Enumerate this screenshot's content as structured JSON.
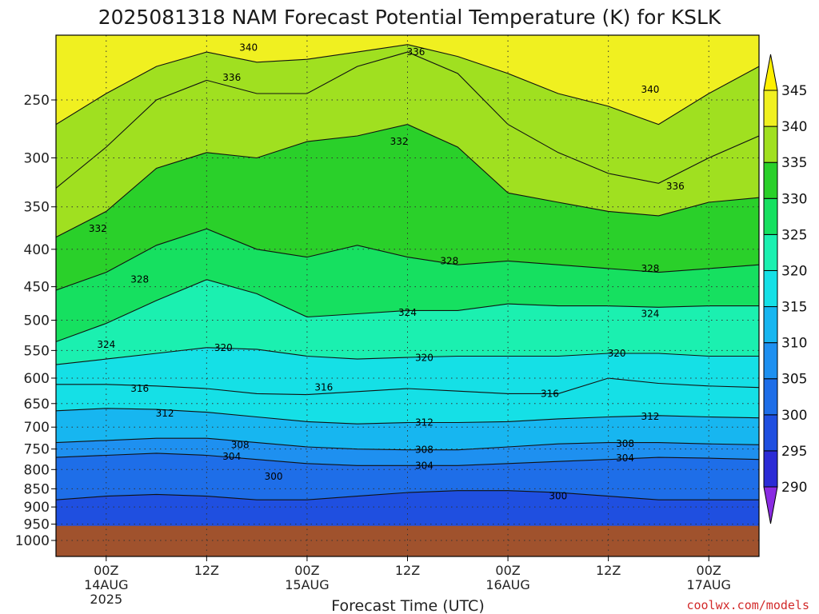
{
  "chart_data": {
    "type": "heatmap",
    "title": "2025081318 NAM Forecast Potential Temperature (K) for KSLK",
    "xlabel": "Forecast Time (UTC)",
    "ylabel": "",
    "y_scale": "log-pressure",
    "y_ticks": [
      "250",
      "300",
      "350",
      "400",
      "450",
      "500",
      "550",
      "600",
      "650",
      "700",
      "750",
      "800",
      "850",
      "900",
      "950",
      "1000"
    ],
    "y_range_hpa": [
      200,
      1000
    ],
    "x_ticks": [
      {
        "time": "00Z",
        "date": "14AUG",
        "year": "2025",
        "hour": 6
      },
      {
        "time": "12Z",
        "date": "",
        "year": "",
        "hour": 18
      },
      {
        "time": "00Z",
        "date": "15AUG",
        "year": "",
        "hour": 30
      },
      {
        "time": "12Z",
        "date": "",
        "year": "",
        "hour": 42
      },
      {
        "time": "00Z",
        "date": "16AUG",
        "year": "",
        "hour": 54
      },
      {
        "time": "12Z",
        "date": "",
        "year": "",
        "hour": 66
      },
      {
        "time": "00Z",
        "date": "17AUG",
        "year": "",
        "hour": 78
      }
    ],
    "x_range_hours": [
      0,
      84
    ],
    "colorbar": {
      "levels": [
        "290",
        "295",
        "300",
        "305",
        "310",
        "315",
        "320",
        "325",
        "330",
        "335",
        "340",
        "345"
      ],
      "colors": [
        "#8a2be2",
        "#2b2bd6",
        "#1f4fe0",
        "#1e6ee8",
        "#1e90f0",
        "#17b6f0",
        "#15e0e6",
        "#1bf0b0",
        "#16e060",
        "#2ad02a",
        "#a0e020",
        "#f0f020",
        "#fff000"
      ]
    },
    "ground_color": "#a0522d",
    "isotherms": [
      {
        "label": "300",
        "p": [
          880,
          870,
          865,
          870,
          880,
          880,
          870,
          860,
          855,
          855,
          860,
          870,
          880,
          880,
          880
        ]
      },
      {
        "label": "304",
        "p": [
          770,
          765,
          760,
          765,
          775,
          785,
          790,
          790,
          790,
          785,
          780,
          775,
          770,
          772,
          775
        ]
      },
      {
        "label": "308",
        "p": [
          735,
          730,
          725,
          725,
          735,
          745,
          750,
          752,
          752,
          745,
          738,
          735,
          735,
          738,
          740
        ]
      },
      {
        "label": "312",
        "p": [
          665,
          660,
          662,
          668,
          678,
          688,
          693,
          690,
          690,
          688,
          682,
          678,
          675,
          678,
          680
        ]
      },
      {
        "label": "316",
        "p": [
          612,
          612,
          615,
          620,
          630,
          632,
          626,
          620,
          625,
          630,
          630,
          600,
          610,
          615,
          618
        ]
      },
      {
        "label": "320",
        "p": [
          575,
          565,
          555,
          545,
          548,
          560,
          565,
          562,
          560,
          560,
          560,
          555,
          555,
          560,
          560
        ]
      },
      {
        "label": "324",
        "p": [
          535,
          505,
          470,
          440,
          460,
          495,
          490,
          485,
          485,
          475,
          478,
          478,
          480,
          478,
          478
        ]
      },
      {
        "label": "328",
        "p": [
          455,
          430,
          395,
          375,
          400,
          410,
          395,
          410,
          420,
          415,
          420,
          425,
          430,
          425,
          420
        ]
      },
      {
        "label": "332",
        "p": [
          385,
          355,
          310,
          295,
          300,
          285,
          280,
          270,
          290,
          335,
          345,
          355,
          360,
          345,
          340
        ]
      },
      {
        "label": "336",
        "p": [
          330,
          290,
          250,
          235,
          245,
          245,
          225,
          215,
          230,
          270,
          295,
          315,
          325,
          300,
          280
        ]
      },
      {
        "label": "340",
        "p": [
          270,
          245,
          225,
          215,
          222,
          220,
          215,
          210,
          218,
          230,
          245,
          255,
          270,
          245,
          225
        ]
      }
    ],
    "contour_labels": [
      {
        "text": "340",
        "hour": 23,
        "p": 212
      },
      {
        "text": "336",
        "hour": 21,
        "p": 233
      },
      {
        "text": "336",
        "hour": 43,
        "p": 215
      },
      {
        "text": "340",
        "hour": 71,
        "p": 242
      },
      {
        "text": "332",
        "hour": 41,
        "p": 285
      },
      {
        "text": "336",
        "hour": 74,
        "p": 328
      },
      {
        "text": "332",
        "hour": 5,
        "p": 375
      },
      {
        "text": "328",
        "hour": 47,
        "p": 415
      },
      {
        "text": "328",
        "hour": 71,
        "p": 425
      },
      {
        "text": "328",
        "hour": 10,
        "p": 440
      },
      {
        "text": "324",
        "hour": 42,
        "p": 488
      },
      {
        "text": "324",
        "hour": 71,
        "p": 490
      },
      {
        "text": "324",
        "hour": 6,
        "p": 540
      },
      {
        "text": "320",
        "hour": 20,
        "p": 545
      },
      {
        "text": "320",
        "hour": 44,
        "p": 563
      },
      {
        "text": "320",
        "hour": 67,
        "p": 555
      },
      {
        "text": "316",
        "hour": 10,
        "p": 620
      },
      {
        "text": "316",
        "hour": 32,
        "p": 618
      },
      {
        "text": "316",
        "hour": 59,
        "p": 630
      },
      {
        "text": "312",
        "hour": 13,
        "p": 670
      },
      {
        "text": "312",
        "hour": 44,
        "p": 690
      },
      {
        "text": "312",
        "hour": 71,
        "p": 677
      },
      {
        "text": "308",
        "hour": 22,
        "p": 740
      },
      {
        "text": "308",
        "hour": 44,
        "p": 752
      },
      {
        "text": "308",
        "hour": 68,
        "p": 738
      },
      {
        "text": "304",
        "hour": 21,
        "p": 768
      },
      {
        "text": "304",
        "hour": 44,
        "p": 790
      },
      {
        "text": "304",
        "hour": 68,
        "p": 772
      },
      {
        "text": "300",
        "hour": 26,
        "p": 818
      },
      {
        "text": "300",
        "hour": 60,
        "p": 870
      }
    ]
  },
  "credit": "coolwx.com/models"
}
